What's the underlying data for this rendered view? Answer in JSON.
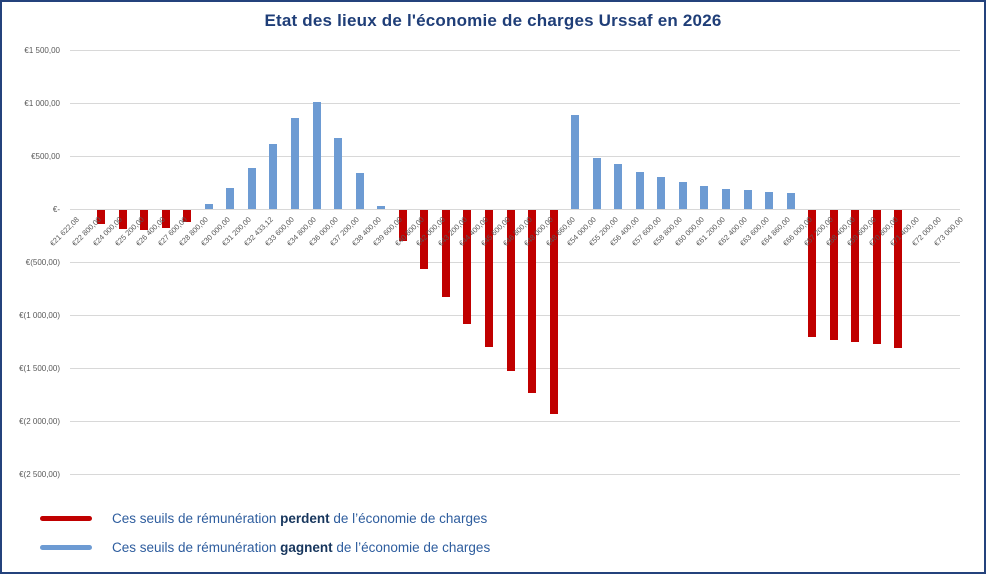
{
  "title": "Etat des lieux de l'économie de charges Urssaf en 2026",
  "chart_data": {
    "type": "bar",
    "title": "Etat des lieux de l'économie de charges Urssaf en 2026",
    "xlabel": "",
    "ylabel": "",
    "ylim": [
      -2500,
      1500
    ],
    "grid": true,
    "legend_position": "bottom",
    "positive_color": "#6D9BD3",
    "negative_color": "#C00000",
    "categories": [
      "€21 622,08",
      "€22 800,00",
      "€24 000,00",
      "€25 200,00",
      "€26 400,00",
      "€27 600,00",
      "€28 800,00",
      "€30 000,00",
      "€31 200,00",
      "€32 433,12",
      "€33 600,00",
      "€34 800,00",
      "€36 000,00",
      "€37 200,00",
      "€38 400,00",
      "€39 600,00",
      "€40 800,00",
      "€42 000,00",
      "€43 200,00",
      "€44 400,00",
      "€45 600,00",
      "€46 800,00",
      "€48 000,00",
      "€48 660,60",
      "€54 000,00",
      "€55 200,00",
      "€56 400,00",
      "€57 600,00",
      "€58 800,00",
      "€60 000,00",
      "€61 200,00",
      "€62 400,00",
      "€63 600,00",
      "€64 860,00",
      "€66 000,00",
      "€67 200,00",
      "€68 400,00",
      "€69 600,00",
      "€70 800,00",
      "€71 400,00",
      "€72 000,00",
      "€73 000,00"
    ],
    "values": [
      null,
      -135,
      -180,
      -190,
      -170,
      -110,
      45,
      200,
      390,
      610,
      855,
      1010,
      670,
      340,
      25,
      -290,
      -560,
      -820,
      -1080,
      -1290,
      -1520,
      -1730,
      -1920,
      890,
      485,
      420,
      350,
      300,
      255,
      220,
      190,
      175,
      160,
      150,
      -1200,
      -1225,
      -1245,
      -1265,
      -1300,
      null,
      null,
      null
    ],
    "yticks": [
      {
        "label": "€1 500,00",
        "value": 1500
      },
      {
        "label": "€1 000,00",
        "value": 1000
      },
      {
        "label": "€500,00",
        "value": 500
      },
      {
        "label": "€-",
        "value": 0
      },
      {
        "label": "€(500,00)",
        "value": -500
      },
      {
        "label": "€(1 000,00)",
        "value": -1000
      },
      {
        "label": "€(1 500,00)",
        "value": -1500
      },
      {
        "label": "€(2 000,00)",
        "value": -2000
      },
      {
        "label": "€(2 500,00)",
        "value": -2500
      }
    ]
  },
  "legend": {
    "items": [
      {
        "color": "#C00000",
        "pre": "Ces seuils de rémunération ",
        "bold": "perdent",
        "post": " de l’économie de charges"
      },
      {
        "color": "#6D9BD3",
        "pre": "Ces seuils de rémunération ",
        "bold": "gagnent",
        "post": " de l’économie de charges"
      }
    ]
  }
}
